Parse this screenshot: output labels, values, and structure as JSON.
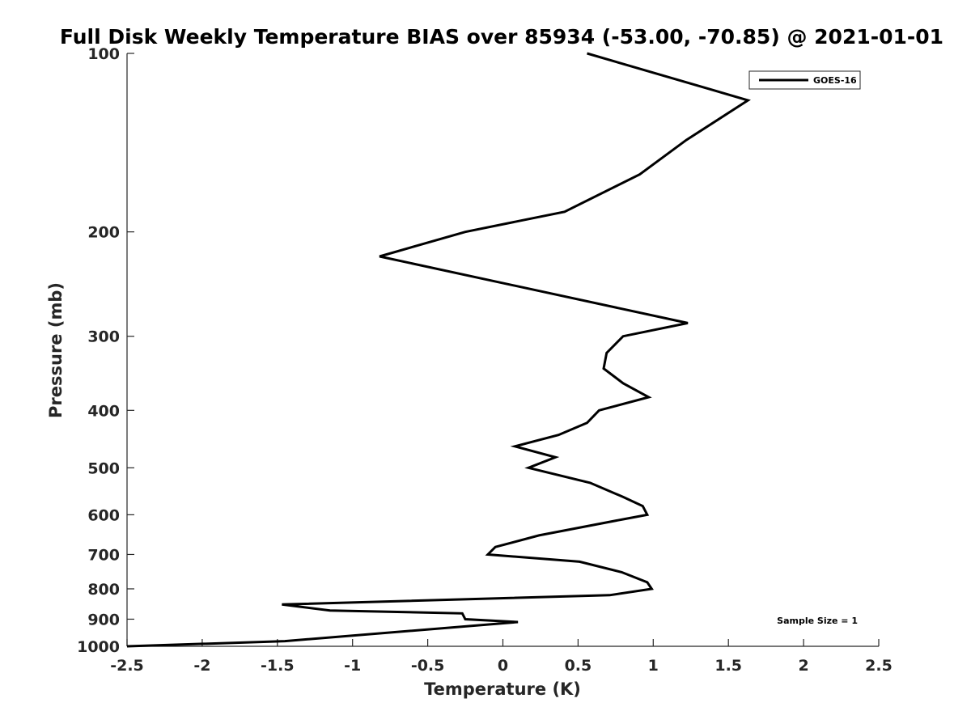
{
  "chart_data": {
    "type": "line",
    "title": "Full Disk Weekly Temperature BIAS over 85934 (-53.00, -70.85) @ 2021-01-01",
    "xlabel": "Temperature (K)",
    "ylabel": "Pressure (mb)",
    "xlim": [
      -2.5,
      2.5
    ],
    "ylim": [
      100,
      1000
    ],
    "y_scale": "log",
    "y_reversed": true,
    "grid": false,
    "legend_position": "top-right",
    "x_ticks": [
      -2.5,
      -2,
      -1.5,
      -1,
      -0.5,
      0,
      0.5,
      1,
      1.5,
      2,
      2.5
    ],
    "x_tick_labels": [
      "-2.5",
      "-2",
      "-1.5",
      "-1",
      "-0.5",
      "0",
      "0.5",
      "1",
      "1.5",
      "2",
      "2.5"
    ],
    "y_ticks": [
      100,
      200,
      300,
      400,
      500,
      600,
      700,
      800,
      900,
      1000
    ],
    "y_tick_labels": [
      "100",
      "200",
      "300",
      "400",
      "500",
      "600",
      "700",
      "800",
      "900",
      "1000"
    ],
    "series": [
      {
        "name": "GOES-16",
        "color": "#000000",
        "points": [
          {
            "x": 0.56,
            "y": 100
          },
          {
            "x": 1.63,
            "y": 120
          },
          {
            "x": 1.22,
            "y": 140
          },
          {
            "x": 0.91,
            "y": 160
          },
          {
            "x": 0.41,
            "y": 185
          },
          {
            "x": -0.25,
            "y": 200
          },
          {
            "x": -0.82,
            "y": 220
          },
          {
            "x": 1.23,
            "y": 285
          },
          {
            "x": 0.8,
            "y": 300
          },
          {
            "x": 0.69,
            "y": 320
          },
          {
            "x": 0.67,
            "y": 340
          },
          {
            "x": 0.8,
            "y": 360
          },
          {
            "x": 0.97,
            "y": 380
          },
          {
            "x": 0.64,
            "y": 400
          },
          {
            "x": 0.56,
            "y": 420
          },
          {
            "x": 0.37,
            "y": 440
          },
          {
            "x": 0.08,
            "y": 460
          },
          {
            "x": 0.35,
            "y": 480
          },
          {
            "x": 0.17,
            "y": 500
          },
          {
            "x": 0.58,
            "y": 530
          },
          {
            "x": 0.8,
            "y": 560
          },
          {
            "x": 0.93,
            "y": 580
          },
          {
            "x": 0.96,
            "y": 600
          },
          {
            "x": 0.81,
            "y": 610
          },
          {
            "x": 0.24,
            "y": 650
          },
          {
            "x": -0.05,
            "y": 680
          },
          {
            "x": -0.1,
            "y": 700
          },
          {
            "x": 0.51,
            "y": 720
          },
          {
            "x": 0.79,
            "y": 750
          },
          {
            "x": 0.96,
            "y": 780
          },
          {
            "x": 0.99,
            "y": 800
          },
          {
            "x": 0.71,
            "y": 820
          },
          {
            "x": -1.47,
            "y": 850
          },
          {
            "x": -1.15,
            "y": 870
          },
          {
            "x": -0.27,
            "y": 880
          },
          {
            "x": -0.25,
            "y": 900
          },
          {
            "x": 0.1,
            "y": 910
          },
          {
            "x": -1.45,
            "y": 980
          },
          {
            "x": -2.5,
            "y": 1000
          }
        ]
      }
    ],
    "legend": [
      "GOES-16"
    ],
    "annotations": [
      "Sample Size = 1"
    ]
  }
}
